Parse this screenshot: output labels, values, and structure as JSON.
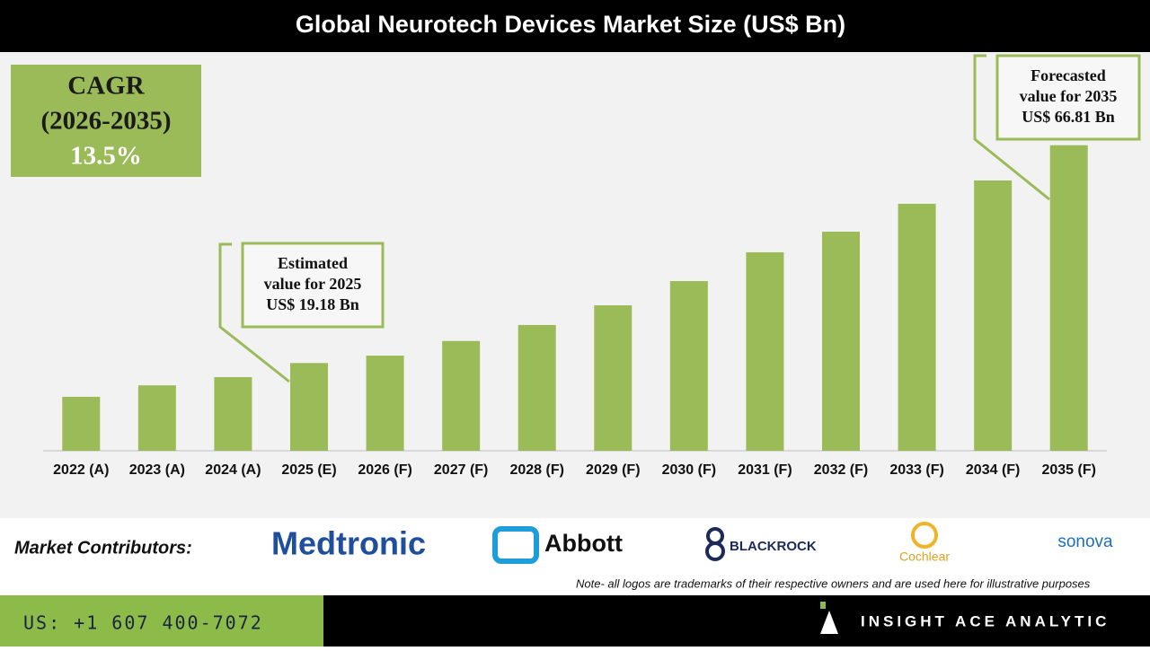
{
  "chart_data": {
    "type": "bar",
    "title": "Global Neurotech Devices Market Size (US$ Bn)",
    "categories": [
      "2022 (A)",
      "2023 (A)",
      "2024 (A)",
      "2025 (E)",
      "2026 (F)",
      "2027 (F)",
      "2028 (F)",
      "2029 (F)",
      "2030 (F)",
      "2031 (F)",
      "2032 (F)",
      "2033 (F)",
      "2034 (F)",
      "2035 (F)"
    ],
    "values": [
      11.8,
      14.3,
      16.1,
      19.18,
      20.8,
      24.0,
      27.5,
      31.8,
      37.1,
      43.4,
      47.9,
      54.0,
      59.1,
      66.81
    ],
    "color": "#9bbb59",
    "ylim": [
      0,
      86
    ],
    "annotations": [
      {
        "lines": [
          "Estimated",
          "value for 2025",
          "US$ 19.18 Bn"
        ]
      },
      {
        "lines": [
          "Forecasted",
          "value for 2035",
          "US$ 66.81 Bn"
        ]
      }
    ]
  },
  "cagr": {
    "label": "CAGR",
    "period": "(2026-2035)",
    "value": "13.5%"
  },
  "contributors": {
    "label": "Market Contributors:",
    "logos": [
      "Medtronic",
      "Abbott",
      "BLACKROCK",
      "Cochlear",
      "sonova"
    ],
    "note": "Note- all logos are trademarks of their respective owners and are used here for illustrative purposes"
  },
  "footer": {
    "phone": "US: +1 607 400-7072",
    "brand": "INSIGHT ACE ANALYTIC"
  }
}
